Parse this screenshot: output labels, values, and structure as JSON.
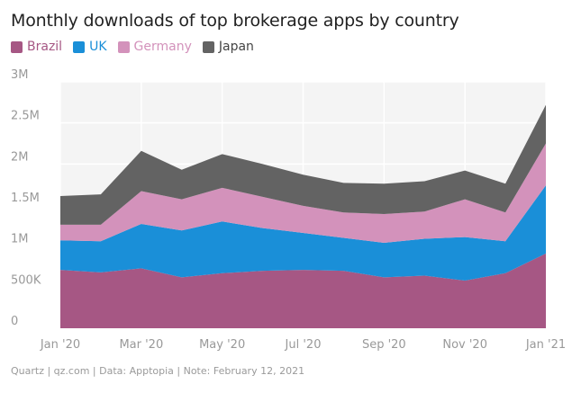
{
  "chart_data": {
    "type": "area",
    "title": "Monthly downloads of top brokerage apps by country",
    "stacked": true,
    "x": [
      "2020-01",
      "2020-02",
      "2020-03",
      "2020-04",
      "2020-05",
      "2020-06",
      "2020-07",
      "2020-08",
      "2020-09",
      "2020-10",
      "2020-11",
      "2020-12",
      "2021-01"
    ],
    "x_tick_labels": [
      "Jan '20",
      "Mar '20",
      "May '20",
      "Jul '20",
      "Sep '20",
      "Nov '20",
      "Jan '21"
    ],
    "y_tick_labels": [
      "0",
      "500K",
      "1M",
      "1.5M",
      "2M",
      "2.5M",
      "3M"
    ],
    "ylim": [
      0,
      3000000
    ],
    "grid": true,
    "legend_position": "top-left",
    "series": [
      {
        "name": "Brazil",
        "color": "#a65784",
        "values": [
          710000,
          680000,
          730000,
          620000,
          670000,
          700000,
          710000,
          700000,
          620000,
          640000,
          580000,
          670000,
          910000
        ]
      },
      {
        "name": "UK",
        "color": "#1a8fd8",
        "values": [
          360000,
          380000,
          540000,
          570000,
          630000,
          520000,
          450000,
          400000,
          420000,
          450000,
          530000,
          390000,
          830000
        ]
      },
      {
        "name": "Germany",
        "color": "#d392bb",
        "values": [
          190000,
          200000,
          400000,
          380000,
          410000,
          380000,
          330000,
          310000,
          350000,
          330000,
          460000,
          350000,
          510000
        ]
      },
      {
        "name": "Japan",
        "color": "#636363",
        "values": [
          350000,
          370000,
          490000,
          360000,
          410000,
          400000,
          380000,
          360000,
          370000,
          370000,
          350000,
          350000,
          470000
        ]
      }
    ]
  },
  "source_text": "Quartz | qz.com | Data: Apptopia | Note: February 12, 2021"
}
